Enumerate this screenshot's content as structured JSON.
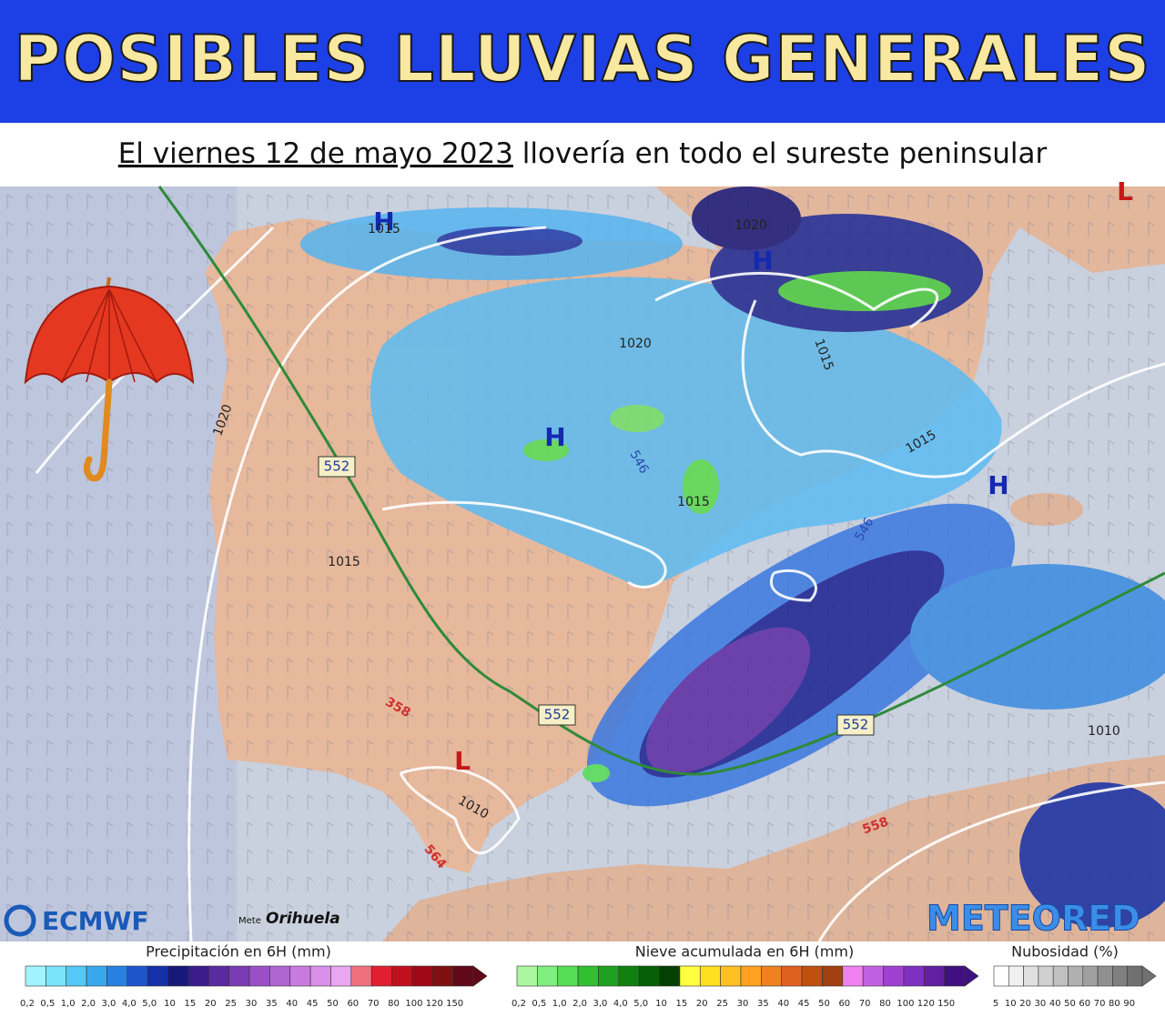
{
  "header": {
    "title": "POSIBLES LLUVIAS GENERALES",
    "subtitle_underlined": "El viernes 12 de mayo 2023",
    "subtitle_rest": " llovería en todo el sureste peninsular"
  },
  "map": {
    "labels": [
      "H",
      "1015",
      "1020",
      "H",
      "1020",
      "1015",
      "H",
      "546",
      "1015",
      "1015",
      "H",
      "546",
      "1020",
      "552",
      "1015",
      "358",
      "552",
      "552",
      "1010",
      "L",
      "1010",
      "558",
      "564",
      "L"
    ],
    "logos": {
      "left": "ECMWF",
      "middle_small": "Mete",
      "middle": "Orihuela",
      "right": "METEORED"
    }
  },
  "legend": [
    {
      "title": "Precipitación en 6H (mm)",
      "colors": [
        "#a0f4ff",
        "#78e4fa",
        "#55c8f5",
        "#38a8ec",
        "#2a80e0",
        "#1f55cc",
        "#1530a8",
        "#16187a",
        "#3a1c8c",
        "#5a2aa0",
        "#7a3cb4",
        "#9a50c4",
        "#b066d0",
        "#c87ade",
        "#d890e8",
        "#e8a8f0",
        "#f07080",
        "#e02030",
        "#c01020",
        "#a00818",
        "#801010",
        "#600818"
      ],
      "labels": [
        "0,2",
        "0,5",
        "1,0",
        "2,0",
        "3,0",
        "4,0",
        "5,0",
        "10",
        "15",
        "20",
        "25",
        "30",
        "35",
        "40",
        "45",
        "50",
        "60",
        "70",
        "80",
        "100",
        "120",
        "150"
      ]
    },
    {
      "title": "Nieve acumulada en 6H (mm)",
      "colors": [
        "#aaf7a0",
        "#80ee80",
        "#55dd55",
        "#30c030",
        "#20a020",
        "#108010",
        "#066006",
        "#044004",
        "#ffff40",
        "#ffe020",
        "#ffc020",
        "#ffa020",
        "#f08020",
        "#e06020",
        "#c05010",
        "#a04010",
        "#f080f0",
        "#c060e0",
        "#a040d0",
        "#8030c0",
        "#6020a0",
        "#401080"
      ],
      "labels": [
        "0,2",
        "0,5",
        "1,0",
        "2,0",
        "3,0",
        "4,0",
        "5,0",
        "10",
        "15",
        "20",
        "25",
        "30",
        "35",
        "40",
        "45",
        "50",
        "60",
        "70",
        "80",
        "100",
        "120",
        "150"
      ]
    },
    {
      "title": "Nubosidad (%)",
      "colors": [
        "#ffffff",
        "#f0f0f0",
        "#e0e0e0",
        "#d0d0d0",
        "#c0c0c0",
        "#b0b0b0",
        "#a0a0a0",
        "#909090",
        "#808080",
        "#707070"
      ],
      "labels": [
        "5",
        "10",
        "20",
        "30",
        "40",
        "50",
        "60",
        "70",
        "80",
        "90"
      ]
    }
  ]
}
